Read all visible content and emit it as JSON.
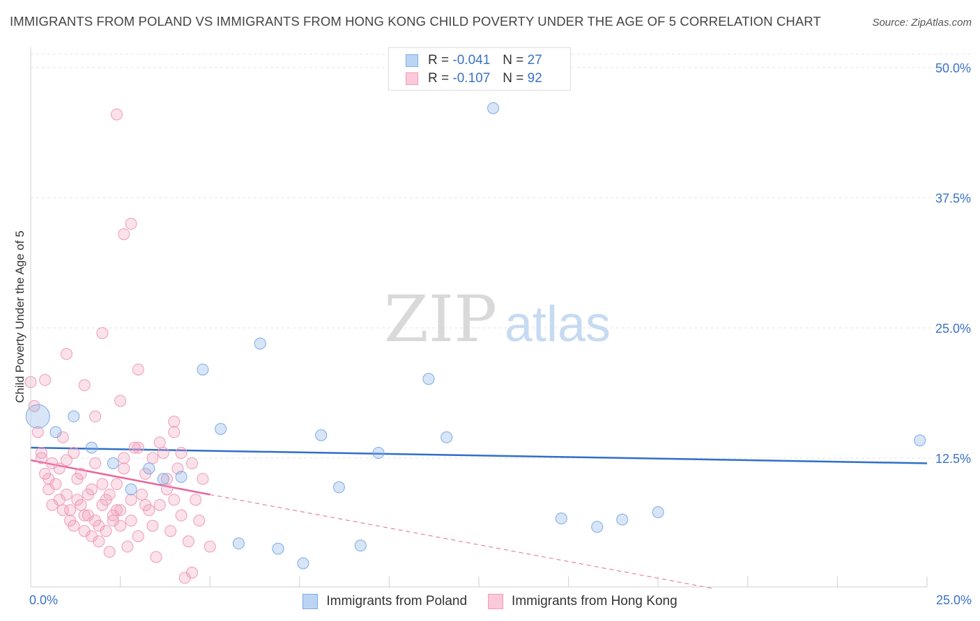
{
  "title": "IMMIGRANTS FROM POLAND VS IMMIGRANTS FROM HONG KONG CHILD POVERTY UNDER THE AGE OF 5 CORRELATION CHART",
  "source": "Source: ZipAtlas.com",
  "watermark": {
    "zip": "ZIP",
    "atlas": "atlas"
  },
  "legend": {
    "rows": [
      {
        "r_label": "R =",
        "r_value": "-0.041",
        "n_label": "N =",
        "n_value": "27"
      },
      {
        "r_label": "R =",
        "r_value": "-0.107",
        "n_label": "N =",
        "n_value": "92"
      }
    ]
  },
  "chart_data": {
    "type": "scatter",
    "title": "IMMIGRANTS FROM POLAND VS IMMIGRANTS FROM HONG KONG CHILD POVERTY UNDER THE AGE OF 5 CORRELATION CHART",
    "xlabel": "",
    "ylabel": "Child Poverty Under the Age of 5",
    "xlim": [
      0,
      25
    ],
    "ylim": [
      0,
      50
    ],
    "x_tick_labels": [
      "0.0%",
      "25.0%"
    ],
    "y_ticks": [
      12.5,
      25.0,
      37.5,
      50.0
    ],
    "y_tick_labels": [
      "12.5%",
      "25.0%",
      "37.5%",
      "50.0%"
    ],
    "grid": true,
    "legend_position": "top-center",
    "colors": {
      "poland": "#7aaae6",
      "hongkong": "#f09ab8",
      "poland_line": "#2e6fc7",
      "hongkong_line": "#e8659a",
      "tick": "#3a72c6"
    },
    "series": [
      {
        "name": "Immigrants from Poland",
        "r": -0.041,
        "n": 27,
        "trend": {
          "x": [
            0,
            25
          ],
          "y": [
            13.5,
            12.0
          ]
        },
        "points": [
          {
            "x": 0.2,
            "y": 16.5,
            "big": true
          },
          {
            "x": 1.2,
            "y": 16.5
          },
          {
            "x": 0.7,
            "y": 15.0
          },
          {
            "x": 1.7,
            "y": 13.5
          },
          {
            "x": 2.3,
            "y": 12.0
          },
          {
            "x": 2.8,
            "y": 9.5
          },
          {
            "x": 3.3,
            "y": 11.5
          },
          {
            "x": 3.7,
            "y": 10.5
          },
          {
            "x": 4.2,
            "y": 10.7
          },
          {
            "x": 4.8,
            "y": 21.0
          },
          {
            "x": 5.3,
            "y": 15.3
          },
          {
            "x": 5.8,
            "y": 4.3
          },
          {
            "x": 6.4,
            "y": 23.5
          },
          {
            "x": 6.9,
            "y": 3.8
          },
          {
            "x": 7.6,
            "y": 2.4
          },
          {
            "x": 8.1,
            "y": 14.7
          },
          {
            "x": 8.6,
            "y": 9.7
          },
          {
            "x": 9.2,
            "y": 4.1
          },
          {
            "x": 9.7,
            "y": 13.0
          },
          {
            "x": 11.1,
            "y": 20.1
          },
          {
            "x": 11.6,
            "y": 14.5
          },
          {
            "x": 12.9,
            "y": 46.1
          },
          {
            "x": 14.8,
            "y": 6.7
          },
          {
            "x": 15.8,
            "y": 5.9
          },
          {
            "x": 16.5,
            "y": 6.6
          },
          {
            "x": 17.5,
            "y": 7.3
          },
          {
            "x": 24.8,
            "y": 14.2
          }
        ]
      },
      {
        "name": "Immigrants from Hong Kong",
        "r": -0.107,
        "n": 92,
        "trend": {
          "x": [
            0,
            5
          ],
          "y": [
            12.3,
            9.0
          ]
        },
        "trend_extension": {
          "x": [
            5,
            19
          ],
          "y": [
            9.0,
            0.0
          ]
        },
        "points": [
          {
            "x": 0.0,
            "y": 19.8
          },
          {
            "x": 0.1,
            "y": 17.5
          },
          {
            "x": 0.2,
            "y": 15.0
          },
          {
            "x": 0.3,
            "y": 12.5
          },
          {
            "x": 0.4,
            "y": 11.0
          },
          {
            "x": 0.5,
            "y": 9.5
          },
          {
            "x": 0.6,
            "y": 12.0
          },
          {
            "x": 0.7,
            "y": 10.0
          },
          {
            "x": 0.8,
            "y": 8.5
          },
          {
            "x": 0.9,
            "y": 14.5
          },
          {
            "x": 1.0,
            "y": 12.3
          },
          {
            "x": 1.1,
            "y": 7.5
          },
          {
            "x": 1.2,
            "y": 6.0
          },
          {
            "x": 1.3,
            "y": 10.5
          },
          {
            "x": 1.4,
            "y": 8.0
          },
          {
            "x": 1.5,
            "y": 5.5
          },
          {
            "x": 1.6,
            "y": 7.0
          },
          {
            "x": 1.7,
            "y": 9.5
          },
          {
            "x": 1.8,
            "y": 6.5
          },
          {
            "x": 1.9,
            "y": 4.5
          },
          {
            "x": 2.0,
            "y": 8.0
          },
          {
            "x": 2.1,
            "y": 5.5
          },
          {
            "x": 2.2,
            "y": 3.5
          },
          {
            "x": 2.3,
            "y": 7.0
          },
          {
            "x": 2.4,
            "y": 10.0
          },
          {
            "x": 2.5,
            "y": 6.0
          },
          {
            "x": 2.6,
            "y": 12.5
          },
          {
            "x": 2.7,
            "y": 4.0
          },
          {
            "x": 2.8,
            "y": 8.5
          },
          {
            "x": 2.9,
            "y": 13.5
          },
          {
            "x": 3.0,
            "y": 5.0
          },
          {
            "x": 3.1,
            "y": 9.0
          },
          {
            "x": 3.2,
            "y": 11.0
          },
          {
            "x": 3.3,
            "y": 7.5
          },
          {
            "x": 3.4,
            "y": 6.0
          },
          {
            "x": 3.5,
            "y": 3.0
          },
          {
            "x": 3.6,
            "y": 8.0
          },
          {
            "x": 3.7,
            "y": 13.0
          },
          {
            "x": 3.8,
            "y": 9.5
          },
          {
            "x": 3.9,
            "y": 5.5
          },
          {
            "x": 4.0,
            "y": 15.0
          },
          {
            "x": 4.1,
            "y": 11.5
          },
          {
            "x": 4.2,
            "y": 7.0
          },
          {
            "x": 4.3,
            "y": 1.0
          },
          {
            "x": 4.4,
            "y": 4.5
          },
          {
            "x": 4.5,
            "y": 12.0
          },
          {
            "x": 4.6,
            "y": 8.5
          },
          {
            "x": 4.7,
            "y": 6.5
          },
          {
            "x": 4.8,
            "y": 10.5
          },
          {
            "x": 5.0,
            "y": 4.0
          },
          {
            "x": 0.3,
            "y": 13.0
          },
          {
            "x": 0.5,
            "y": 10.5
          },
          {
            "x": 0.8,
            "y": 11.5
          },
          {
            "x": 1.0,
            "y": 9.0
          },
          {
            "x": 1.2,
            "y": 13.0
          },
          {
            "x": 1.4,
            "y": 11.0
          },
          {
            "x": 1.6,
            "y": 9.0
          },
          {
            "x": 1.8,
            "y": 12.0
          },
          {
            "x": 2.0,
            "y": 10.0
          },
          {
            "x": 2.2,
            "y": 9.0
          },
          {
            "x": 2.4,
            "y": 7.5
          },
          {
            "x": 2.6,
            "y": 11.5
          },
          {
            "x": 2.8,
            "y": 6.5
          },
          {
            "x": 3.0,
            "y": 13.5
          },
          {
            "x": 3.2,
            "y": 8.0
          },
          {
            "x": 3.4,
            "y": 12.5
          },
          {
            "x": 3.6,
            "y": 14.0
          },
          {
            "x": 3.8,
            "y": 10.5
          },
          {
            "x": 4.0,
            "y": 8.5
          },
          {
            "x": 4.2,
            "y": 13.0
          },
          {
            "x": 0.6,
            "y": 8.0
          },
          {
            "x": 0.9,
            "y": 7.5
          },
          {
            "x": 1.1,
            "y": 6.5
          },
          {
            "x": 1.3,
            "y": 8.5
          },
          {
            "x": 1.5,
            "y": 7.0
          },
          {
            "x": 1.7,
            "y": 5.0
          },
          {
            "x": 1.9,
            "y": 6.0
          },
          {
            "x": 2.1,
            "y": 8.5
          },
          {
            "x": 2.3,
            "y": 6.5
          },
          {
            "x": 2.5,
            "y": 7.5
          },
          {
            "x": 1.0,
            "y": 22.5
          },
          {
            "x": 1.5,
            "y": 19.5
          },
          {
            "x": 2.0,
            "y": 24.5
          },
          {
            "x": 2.5,
            "y": 18.0
          },
          {
            "x": 3.0,
            "y": 21.0
          },
          {
            "x": 4.0,
            "y": 16.0
          },
          {
            "x": 1.8,
            "y": 16.5
          },
          {
            "x": 0.4,
            "y": 20.0
          },
          {
            "x": 2.4,
            "y": 45.5
          },
          {
            "x": 2.6,
            "y": 34.0
          },
          {
            "x": 2.8,
            "y": 35.0
          },
          {
            "x": 4.5,
            "y": 1.5
          }
        ]
      }
    ]
  },
  "bottom_legend": [
    "Immigrants from Poland",
    "Immigrants from Hong Kong"
  ]
}
